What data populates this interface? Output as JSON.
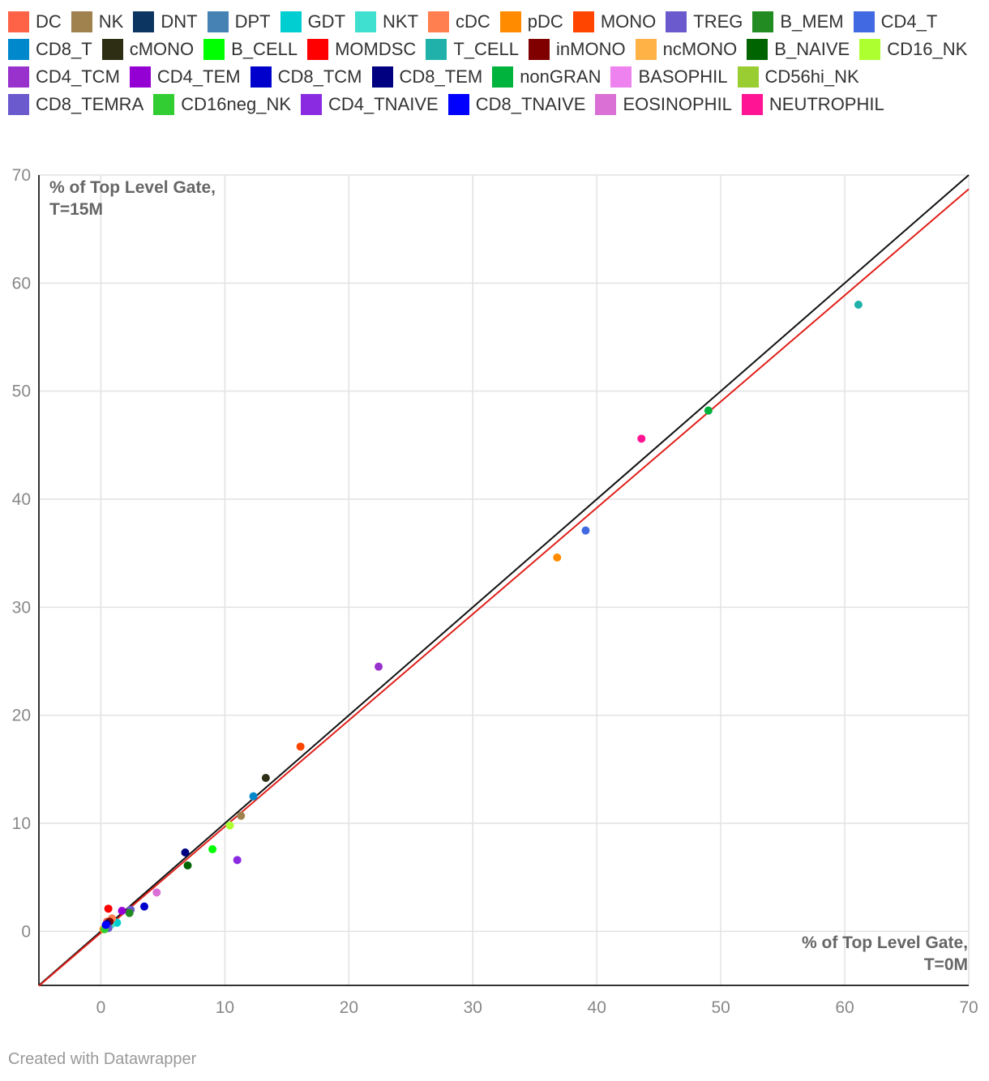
{
  "chart_data": {
    "type": "scatter",
    "xlabel": "% of Top Level Gate, T=0M",
    "ylabel": "% of Top Level Gate, T=15M",
    "xlim": [
      -5,
      70
    ],
    "ylim": [
      -5,
      70
    ],
    "xticks": [
      0,
      10,
      20,
      30,
      40,
      50,
      60,
      70
    ],
    "yticks": [
      0,
      10,
      20,
      30,
      40,
      50,
      60,
      70
    ],
    "grid": true,
    "legend_position": "top",
    "reference_lines": [
      {
        "kind": "identity",
        "color": "#111111",
        "points": [
          [
            -5,
            -5
          ],
          [
            70,
            70
          ]
        ]
      },
      {
        "kind": "fit",
        "color": "#e0201b",
        "points": [
          [
            -5,
            -5.05
          ],
          [
            70,
            68.7
          ]
        ]
      }
    ],
    "series": [
      {
        "name": "DC",
        "color": "#ff6347",
        "points": [
          [
            0.5,
            0.9
          ]
        ]
      },
      {
        "name": "NK",
        "color": "#a0824f",
        "points": [
          [
            11.3,
            10.7
          ]
        ]
      },
      {
        "name": "DNT",
        "color": "#0d3562",
        "points": [
          [
            0.6,
            0.5
          ]
        ]
      },
      {
        "name": "DPT",
        "color": "#4682b4",
        "points": [
          [
            0.4,
            0.3
          ]
        ]
      },
      {
        "name": "GDT",
        "color": "#00ced1",
        "points": [
          [
            1.3,
            0.8
          ]
        ]
      },
      {
        "name": "NKT",
        "color": "#40e0d0",
        "points": [
          [
            0.8,
            0.6
          ]
        ]
      },
      {
        "name": "cDC",
        "color": "#ff7f50",
        "points": [
          [
            0.9,
            1.2
          ]
        ]
      },
      {
        "name": "pDC",
        "color": "#ff8c00",
        "points": [
          [
            0.2,
            0.2
          ],
          [
            36.8,
            34.6
          ]
        ]
      },
      {
        "name": "MONO",
        "color": "#ff4500",
        "points": [
          [
            16.1,
            17.1
          ]
        ]
      },
      {
        "name": "TREG",
        "color": "#6a5acd",
        "points": [
          [
            2.4,
            2.0
          ]
        ]
      },
      {
        "name": "B_MEM",
        "color": "#228b22",
        "points": [
          [
            2.3,
            1.7
          ]
        ]
      },
      {
        "name": "CD4_T",
        "color": "#4169e1",
        "points": [
          [
            39.1,
            37.1
          ]
        ]
      },
      {
        "name": "CD8_T",
        "color": "#0088cc",
        "points": [
          [
            12.3,
            12.5
          ]
        ]
      },
      {
        "name": "cMONO",
        "color": "#2e2e14",
        "points": [
          [
            13.3,
            14.2
          ]
        ]
      },
      {
        "name": "B_CELL",
        "color": "#00ff00",
        "points": [
          [
            9.0,
            7.6
          ]
        ]
      },
      {
        "name": "MOMDSC",
        "color": "#ff0000",
        "points": [
          [
            0.6,
            2.1
          ]
        ]
      },
      {
        "name": "T_CELL",
        "color": "#20b2aa",
        "points": [
          [
            61.1,
            58.0
          ]
        ]
      },
      {
        "name": "inMONO",
        "color": "#800000",
        "points": [
          [
            0.7,
            0.9
          ]
        ]
      },
      {
        "name": "ncMONO",
        "color": "#ffb347",
        "points": [
          [
            0.3,
            0.3
          ]
        ]
      },
      {
        "name": "B_NAIVE",
        "color": "#006400",
        "points": [
          [
            7.0,
            6.1
          ]
        ]
      },
      {
        "name": "CD16_NK",
        "color": "#adff2f",
        "points": [
          [
            10.4,
            9.8
          ]
        ]
      },
      {
        "name": "CD4_TCM",
        "color": "#9932cc",
        "points": [
          [
            22.4,
            24.5
          ]
        ]
      },
      {
        "name": "CD4_TEM",
        "color": "#9400d3",
        "points": [
          [
            1.7,
            1.9
          ]
        ]
      },
      {
        "name": "CD8_TCM",
        "color": "#0000cd",
        "points": [
          [
            3.5,
            2.3
          ]
        ]
      },
      {
        "name": "CD8_TEM",
        "color": "#000080",
        "points": [
          [
            6.8,
            7.3
          ],
          [
            0.5,
            0.7
          ]
        ]
      },
      {
        "name": "nonGRAN",
        "color": "#00b33c",
        "points": [
          [
            49.0,
            48.2
          ]
        ]
      },
      {
        "name": "BASOPHIL",
        "color": "#ee82ee",
        "points": [
          [
            0.4,
            0.4
          ]
        ]
      },
      {
        "name": "CD56hi_NK",
        "color": "#9acd32",
        "points": [
          [
            0.5,
            0.4
          ]
        ]
      },
      {
        "name": "CD8_TEMRA",
        "color": "#6a5acd",
        "points": [
          [
            0.6,
            0.3
          ]
        ]
      },
      {
        "name": "CD16neg_NK",
        "color": "#32cd32",
        "points": [
          [
            0.3,
            0.2
          ]
        ]
      },
      {
        "name": "CD4_TNAIVE",
        "color": "#8a2be2",
        "points": [
          [
            11.0,
            6.6
          ]
        ]
      },
      {
        "name": "CD8_TNAIVE",
        "color": "#0000ff",
        "points": [
          [
            0.4,
            0.6
          ]
        ]
      },
      {
        "name": "EOSINOPHIL",
        "color": "#da70d6",
        "points": [
          [
            4.5,
            3.6
          ]
        ]
      },
      {
        "name": "NEUTROPHIL",
        "color": "#ff1493",
        "points": [
          [
            43.6,
            45.6
          ]
        ]
      }
    ]
  },
  "footer": {
    "credit": "Created with Datawrapper"
  }
}
